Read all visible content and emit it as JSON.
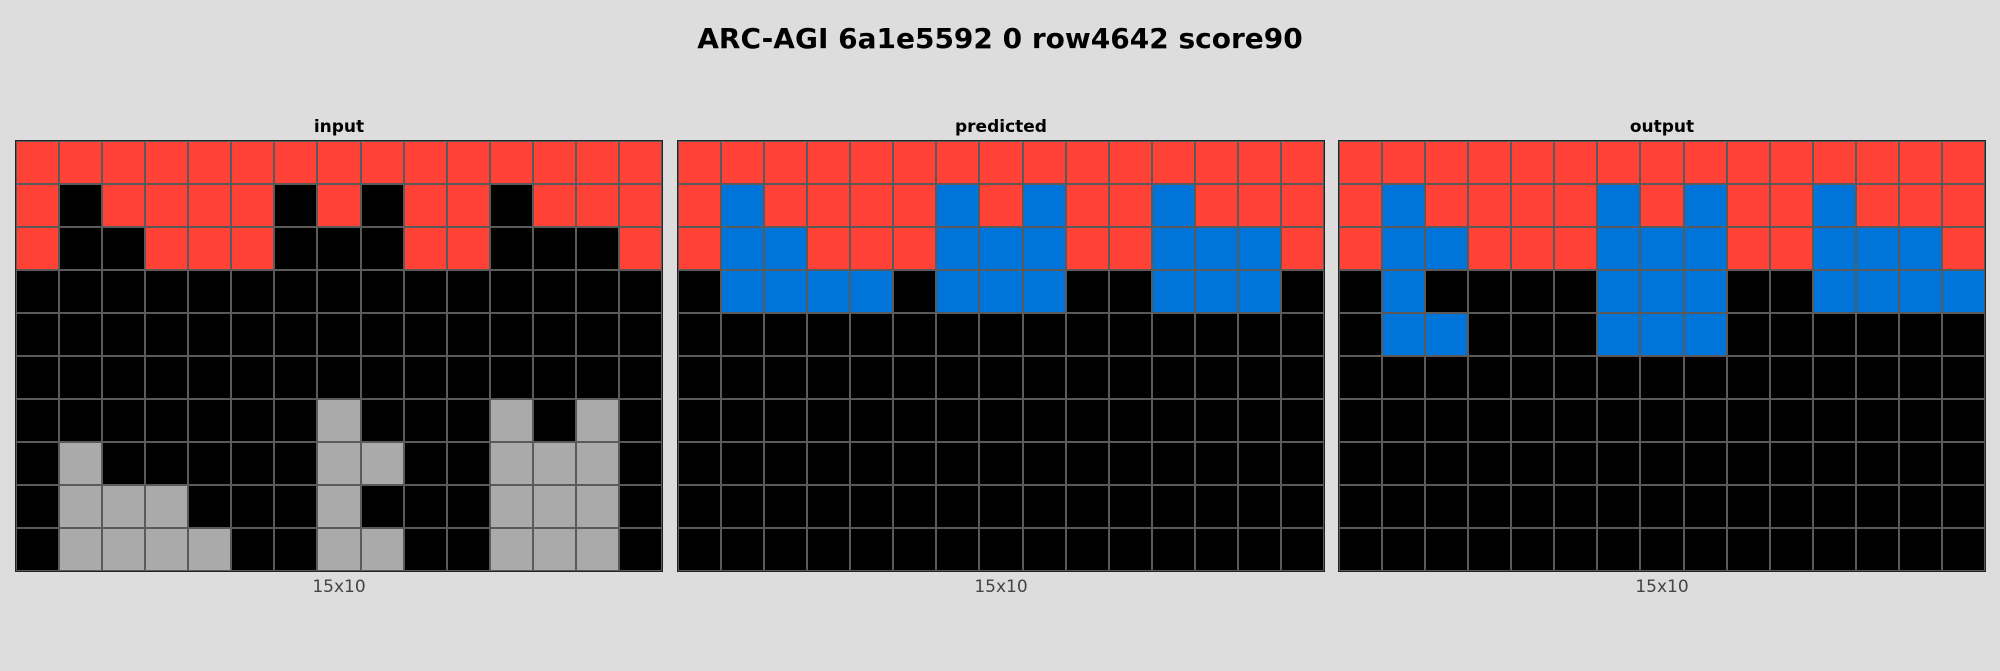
{
  "title": "ARC-AGI 6a1e5592 0 row4642 score90",
  "colors": {
    "0": "#000000",
    "1": "#0074d9",
    "2": "#ff4136",
    "5": "#aaaaaa"
  },
  "panels": [
    {
      "label": "input",
      "dims": "15x10",
      "grid": [
        [
          2,
          2,
          2,
          2,
          2,
          2,
          2,
          2,
          2,
          2,
          2,
          2,
          2,
          2,
          2
        ],
        [
          2,
          0,
          2,
          2,
          2,
          2,
          0,
          2,
          0,
          2,
          2,
          0,
          2,
          2,
          2
        ],
        [
          2,
          0,
          0,
          2,
          2,
          2,
          0,
          0,
          0,
          2,
          2,
          0,
          0,
          0,
          2
        ],
        [
          0,
          0,
          0,
          0,
          0,
          0,
          0,
          0,
          0,
          0,
          0,
          0,
          0,
          0,
          0
        ],
        [
          0,
          0,
          0,
          0,
          0,
          0,
          0,
          0,
          0,
          0,
          0,
          0,
          0,
          0,
          0
        ],
        [
          0,
          0,
          0,
          0,
          0,
          0,
          0,
          0,
          0,
          0,
          0,
          0,
          0,
          0,
          0
        ],
        [
          0,
          0,
          0,
          0,
          0,
          0,
          0,
          5,
          0,
          0,
          0,
          5,
          0,
          5,
          0
        ],
        [
          0,
          5,
          0,
          0,
          0,
          0,
          0,
          5,
          5,
          0,
          0,
          5,
          5,
          5,
          0
        ],
        [
          0,
          5,
          5,
          5,
          0,
          0,
          0,
          5,
          0,
          0,
          0,
          5,
          5,
          5,
          0
        ],
        [
          0,
          5,
          5,
          5,
          5,
          0,
          0,
          5,
          5,
          0,
          0,
          5,
          5,
          5,
          0
        ]
      ]
    },
    {
      "label": "predicted",
      "dims": "15x10",
      "grid": [
        [
          2,
          2,
          2,
          2,
          2,
          2,
          2,
          2,
          2,
          2,
          2,
          2,
          2,
          2,
          2
        ],
        [
          2,
          1,
          2,
          2,
          2,
          2,
          1,
          2,
          1,
          2,
          2,
          1,
          2,
          2,
          2
        ],
        [
          2,
          1,
          1,
          2,
          2,
          2,
          1,
          1,
          1,
          2,
          2,
          1,
          1,
          1,
          2
        ],
        [
          0,
          1,
          1,
          1,
          1,
          0,
          1,
          1,
          1,
          0,
          0,
          1,
          1,
          1,
          0
        ],
        [
          0,
          0,
          0,
          0,
          0,
          0,
          0,
          0,
          0,
          0,
          0,
          0,
          0,
          0,
          0
        ],
        [
          0,
          0,
          0,
          0,
          0,
          0,
          0,
          0,
          0,
          0,
          0,
          0,
          0,
          0,
          0
        ],
        [
          0,
          0,
          0,
          0,
          0,
          0,
          0,
          0,
          0,
          0,
          0,
          0,
          0,
          0,
          0
        ],
        [
          0,
          0,
          0,
          0,
          0,
          0,
          0,
          0,
          0,
          0,
          0,
          0,
          0,
          0,
          0
        ],
        [
          0,
          0,
          0,
          0,
          0,
          0,
          0,
          0,
          0,
          0,
          0,
          0,
          0,
          0,
          0
        ],
        [
          0,
          0,
          0,
          0,
          0,
          0,
          0,
          0,
          0,
          0,
          0,
          0,
          0,
          0,
          0
        ]
      ]
    },
    {
      "label": "output",
      "dims": "15x10",
      "grid": [
        [
          2,
          2,
          2,
          2,
          2,
          2,
          2,
          2,
          2,
          2,
          2,
          2,
          2,
          2,
          2
        ],
        [
          2,
          1,
          2,
          2,
          2,
          2,
          1,
          2,
          1,
          2,
          2,
          1,
          2,
          2,
          2
        ],
        [
          2,
          1,
          1,
          2,
          2,
          2,
          1,
          1,
          1,
          2,
          2,
          1,
          1,
          1,
          2
        ],
        [
          0,
          1,
          0,
          0,
          0,
          0,
          1,
          1,
          1,
          0,
          0,
          1,
          1,
          1,
          1
        ],
        [
          0,
          1,
          1,
          0,
          0,
          0,
          1,
          1,
          1,
          0,
          0,
          0,
          0,
          0,
          0
        ],
        [
          0,
          0,
          0,
          0,
          0,
          0,
          0,
          0,
          0,
          0,
          0,
          0,
          0,
          0,
          0
        ],
        [
          0,
          0,
          0,
          0,
          0,
          0,
          0,
          0,
          0,
          0,
          0,
          0,
          0,
          0,
          0
        ],
        [
          0,
          0,
          0,
          0,
          0,
          0,
          0,
          0,
          0,
          0,
          0,
          0,
          0,
          0,
          0
        ],
        [
          0,
          0,
          0,
          0,
          0,
          0,
          0,
          0,
          0,
          0,
          0,
          0,
          0,
          0,
          0
        ],
        [
          0,
          0,
          0,
          0,
          0,
          0,
          0,
          0,
          0,
          0,
          0,
          0,
          0,
          0,
          0
        ]
      ]
    }
  ]
}
